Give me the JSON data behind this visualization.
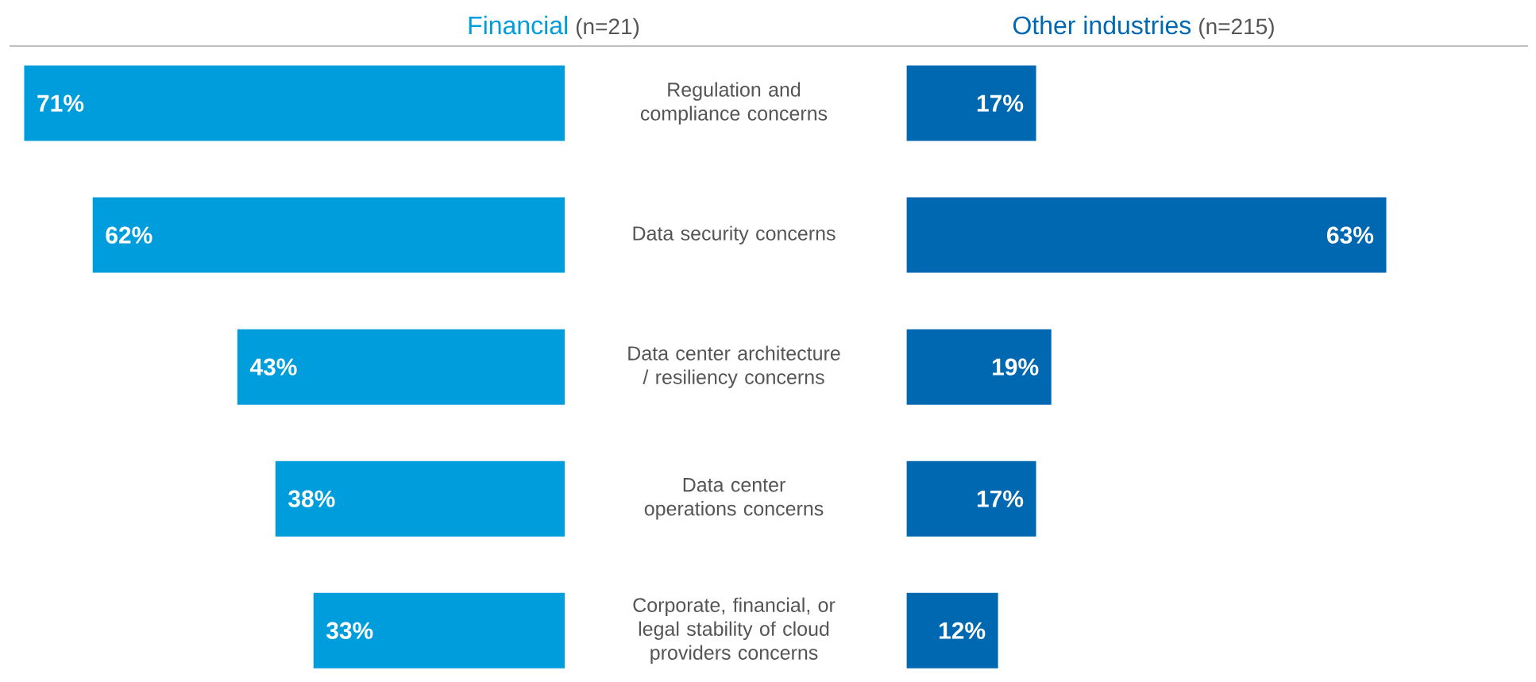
{
  "chart_data": [
    {
      "type": "bar",
      "orientation": "horizontal",
      "title": "Financial",
      "subtitle": "(n=21)",
      "categories": [
        "Regulation and compliance concerns",
        "Data security concerns",
        "Data center architecture / resiliency concerns",
        "Data center operations concerns",
        "Corporate, financial, or legal stability of cloud providers concerns"
      ],
      "values": [
        71,
        62,
        43,
        38,
        33
      ],
      "value_labels": [
        "71%",
        "62%",
        "43%",
        "38%",
        "33%"
      ],
      "color": "#009ddc",
      "tick_labels": "y"
    },
    {
      "type": "bar",
      "orientation": "horizontal",
      "title": "Other industries",
      "subtitle": "(n=215)",
      "categories": [
        null,
        null,
        null,
        null,
        null
      ],
      "values": [
        17,
        63,
        19,
        17,
        12
      ],
      "value_labels": [
        "17%",
        "63%",
        "19%",
        "17%",
        "12%"
      ],
      "color": "#0068b0",
      "tick_labels": false
    }
  ]
}
